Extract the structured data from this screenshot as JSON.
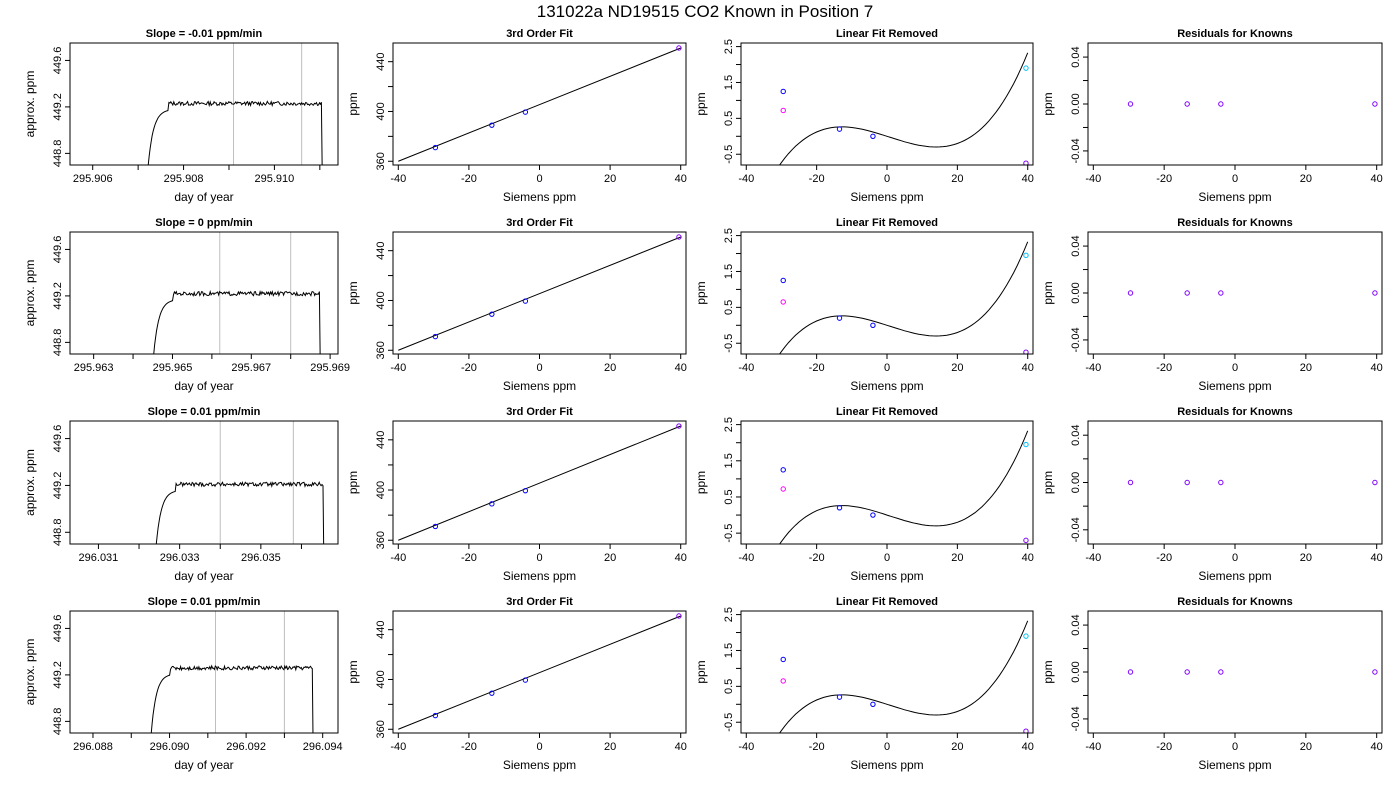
{
  "title": "131022a     ND19515   CO2 Known in Position  7",
  "colors": {
    "trace": "#000000",
    "vline": "#bebebe",
    "blue": "#0000ff",
    "magenta": "#ff00ff",
    "cyan": "#00bfff",
    "purple": "#8000ff"
  },
  "chart_data": [
    {
      "type": "line",
      "row": 0,
      "title": "Slope =  -0.01  ppm/min",
      "xlabel": "day of year",
      "ylabel": "approx. ppm",
      "xlim": [
        295.9055,
        295.9114
      ],
      "ylim": [
        448.7,
        449.75
      ],
      "xticks": [
        295.906,
        295.907,
        295.908,
        295.909,
        295.91,
        295.911
      ],
      "xtick_labels": [
        "295.906",
        "",
        "295.908",
        "",
        "295.910",
        ""
      ],
      "yticks": [
        448.8,
        449.2,
        449.6
      ],
      "ytick_labels": [
        "448.8",
        "449.2",
        "449.6"
      ],
      "vlines": [
        295.9091,
        295.9106
      ],
      "trace": {
        "start": 295.9072,
        "end": 295.9111,
        "level": 449.23
      }
    },
    {
      "type": "line",
      "row": 0,
      "title": "3rd Order Fit",
      "xlabel": "Siemens ppm",
      "ylabel": "ppm",
      "xlim": [
        -41.5,
        41.5
      ],
      "ylim": [
        357,
        455
      ],
      "xticks": [
        -40,
        -20,
        0,
        20,
        40
      ],
      "xtick_labels": [
        "-40",
        "-20",
        "0",
        "20",
        "40"
      ],
      "yticks": [
        360,
        380,
        400,
        420,
        440
      ],
      "ytick_labels": [
        "360",
        "",
        "400",
        "",
        "440"
      ],
      "line": {
        "x": [
          -40,
          40
        ],
        "y": [
          360,
          451
        ]
      },
      "points": [
        {
          "x": -29.5,
          "y": 371,
          "color": "blue"
        },
        {
          "x": -13.5,
          "y": 389,
          "color": "blue"
        },
        {
          "x": -4,
          "y": 399.5,
          "color": "blue"
        },
        {
          "x": 39.5,
          "y": 451,
          "color": "purple"
        }
      ]
    },
    {
      "type": "line",
      "row": 0,
      "title": "Linear Fit Removed",
      "xlabel": "Siemens ppm",
      "ylabel": "ppm",
      "xlim": [
        -41.5,
        41.5
      ],
      "ylim": [
        -0.8,
        2.6
      ],
      "xticks": [
        -40,
        -20,
        0,
        20,
        40
      ],
      "xtick_labels": [
        "-40",
        "-20",
        "0",
        "20",
        "40"
      ],
      "yticks": [
        -0.5,
        0,
        0.5,
        1,
        1.5,
        2,
        2.5
      ],
      "ytick_labels": [
        "-0.5",
        "",
        "0.5",
        "",
        "1.5",
        "",
        "2.5"
      ],
      "curve": {
        "type": "cubic",
        "a": 5.85e-05,
        "b": -0.0001,
        "c": -0.0314,
        "d": 0.0
      },
      "points": [
        {
          "x": -29.5,
          "y": 1.25,
          "color": "blue"
        },
        {
          "x": -29.5,
          "y": 0.72,
          "color": "magenta"
        },
        {
          "x": -13.5,
          "y": 0.2,
          "color": "blue"
        },
        {
          "x": -4,
          "y": 0.0,
          "color": "blue"
        },
        {
          "x": 39.5,
          "y": 1.9,
          "color": "cyan"
        },
        {
          "x": 39.5,
          "y": -0.75,
          "color": "purple"
        }
      ]
    },
    {
      "type": "scatter",
      "row": 0,
      "title": "Residuals for Knowns",
      "xlabel": "Siemens ppm",
      "ylabel": "ppm",
      "xlim": [
        -41.5,
        41.5
      ],
      "ylim": [
        -0.052,
        0.052
      ],
      "xticks": [
        -40,
        -20,
        0,
        20,
        40
      ],
      "xtick_labels": [
        "-40",
        "-20",
        "0",
        "20",
        "40"
      ],
      "yticks": [
        -0.04,
        -0.02,
        0,
        0.02,
        0.04
      ],
      "ytick_labels": [
        "-0.04",
        "",
        "0.00",
        "",
        "0.04"
      ],
      "points": [
        {
          "x": -29.5,
          "y": 0,
          "color": "purple"
        },
        {
          "x": -13.5,
          "y": 0,
          "color": "purple"
        },
        {
          "x": -4,
          "y": 0,
          "color": "purple"
        },
        {
          "x": 39.5,
          "y": 0,
          "color": "purple"
        }
      ]
    },
    {
      "type": "line",
      "row": 1,
      "title": "Slope =  0  ppm/min",
      "xlabel": "day of year",
      "ylabel": "approx. ppm",
      "xlim": [
        295.9624,
        295.9692
      ],
      "ylim": [
        448.7,
        449.75
      ],
      "xticks": [
        295.963,
        295.964,
        295.965,
        295.966,
        295.967,
        295.968,
        295.969
      ],
      "xtick_labels": [
        "295.963",
        "",
        "295.965",
        "",
        "295.967",
        "",
        "295.969"
      ],
      "yticks": [
        448.8,
        449.2,
        449.6
      ],
      "ytick_labels": [
        "448.8",
        "449.2",
        "449.6"
      ],
      "vlines": [
        295.9662,
        295.968
      ],
      "trace": {
        "start": 295.9645,
        "end": 295.9688,
        "level": 449.22
      }
    },
    {
      "type": "line",
      "row": 1,
      "title": "3rd Order Fit",
      "xlabel": "Siemens ppm",
      "ylabel": "ppm",
      "xlim": [
        -41.5,
        41.5
      ],
      "ylim": [
        357,
        455
      ],
      "xticks": [
        -40,
        -20,
        0,
        20,
        40
      ],
      "xtick_labels": [
        "-40",
        "-20",
        "0",
        "20",
        "40"
      ],
      "yticks": [
        360,
        380,
        400,
        420,
        440
      ],
      "ytick_labels": [
        "360",
        "",
        "400",
        "",
        "440"
      ],
      "line": {
        "x": [
          -40,
          40
        ],
        "y": [
          360,
          451
        ]
      },
      "points": [
        {
          "x": -29.5,
          "y": 371,
          "color": "blue"
        },
        {
          "x": -13.5,
          "y": 389,
          "color": "blue"
        },
        {
          "x": -4,
          "y": 399.5,
          "color": "blue"
        },
        {
          "x": 39.5,
          "y": 451,
          "color": "purple"
        }
      ]
    },
    {
      "type": "line",
      "row": 1,
      "title": "Linear Fit Removed",
      "xlabel": "Siemens ppm",
      "ylabel": "ppm",
      "xlim": [
        -41.5,
        41.5
      ],
      "ylim": [
        -0.8,
        2.6
      ],
      "xticks": [
        -40,
        -20,
        0,
        20,
        40
      ],
      "xtick_labels": [
        "-40",
        "-20",
        "0",
        "20",
        "40"
      ],
      "yticks": [
        -0.5,
        0,
        0.5,
        1,
        1.5,
        2,
        2.5
      ],
      "ytick_labels": [
        "-0.5",
        "",
        "0.5",
        "",
        "1.5",
        "",
        "2.5"
      ],
      "curve": {
        "type": "cubic",
        "a": 5.85e-05,
        "b": -0.0001,
        "c": -0.0314,
        "d": 0.0
      },
      "points": [
        {
          "x": -29.5,
          "y": 1.25,
          "color": "blue"
        },
        {
          "x": -29.5,
          "y": 0.65,
          "color": "magenta"
        },
        {
          "x": -13.5,
          "y": 0.2,
          "color": "blue"
        },
        {
          "x": -4,
          "y": 0.0,
          "color": "blue"
        },
        {
          "x": 39.5,
          "y": 1.95,
          "color": "cyan"
        },
        {
          "x": 39.5,
          "y": -0.75,
          "color": "purple"
        }
      ]
    },
    {
      "type": "scatter",
      "row": 1,
      "title": "Residuals for Knowns",
      "xlabel": "Siemens ppm",
      "ylabel": "ppm",
      "xlim": [
        -41.5,
        41.5
      ],
      "ylim": [
        -0.052,
        0.052
      ],
      "xticks": [
        -40,
        -20,
        0,
        20,
        40
      ],
      "xtick_labels": [
        "-40",
        "-20",
        "0",
        "20",
        "40"
      ],
      "yticks": [
        -0.04,
        -0.02,
        0,
        0.02,
        0.04
      ],
      "ytick_labels": [
        "-0.04",
        "",
        "0.00",
        "",
        "0.04"
      ],
      "points": [
        {
          "x": -29.5,
          "y": 0,
          "color": "purple"
        },
        {
          "x": -13.5,
          "y": 0,
          "color": "purple"
        },
        {
          "x": -4,
          "y": 0,
          "color": "purple"
        },
        {
          "x": 39.5,
          "y": 0,
          "color": "purple"
        }
      ]
    },
    {
      "type": "line",
      "row": 2,
      "title": "Slope =  0.01  ppm/min",
      "xlabel": "day of year",
      "ylabel": "approx. ppm",
      "xlim": [
        296.0303,
        296.0369
      ],
      "ylim": [
        448.7,
        449.75
      ],
      "xticks": [
        296.031,
        296.032,
        296.033,
        296.034,
        296.035,
        296.036
      ],
      "xtick_labels": [
        "296.031",
        "",
        "296.033",
        "",
        "296.035",
        ""
      ],
      "yticks": [
        448.8,
        449.2,
        449.6
      ],
      "ytick_labels": [
        "448.8",
        "449.2",
        "449.6"
      ],
      "vlines": [
        296.034,
        296.0358
      ],
      "trace": {
        "start": 296.0324,
        "end": 296.0366,
        "level": 449.21
      }
    },
    {
      "type": "line",
      "row": 2,
      "title": "3rd Order Fit",
      "xlabel": "Siemens ppm",
      "ylabel": "ppm",
      "xlim": [
        -41.5,
        41.5
      ],
      "ylim": [
        357,
        455
      ],
      "xticks": [
        -40,
        -20,
        0,
        20,
        40
      ],
      "xtick_labels": [
        "-40",
        "-20",
        "0",
        "20",
        "40"
      ],
      "yticks": [
        360,
        380,
        400,
        420,
        440
      ],
      "ytick_labels": [
        "360",
        "",
        "400",
        "",
        "440"
      ],
      "line": {
        "x": [
          -40,
          40
        ],
        "y": [
          360,
          451
        ]
      },
      "points": [
        {
          "x": -29.5,
          "y": 371,
          "color": "blue"
        },
        {
          "x": -13.5,
          "y": 389,
          "color": "blue"
        },
        {
          "x": -4,
          "y": 399.5,
          "color": "blue"
        },
        {
          "x": 39.5,
          "y": 451,
          "color": "purple"
        }
      ]
    },
    {
      "type": "line",
      "row": 2,
      "title": "Linear Fit Removed",
      "xlabel": "Siemens ppm",
      "ylabel": "ppm",
      "xlim": [
        -41.5,
        41.5
      ],
      "ylim": [
        -0.8,
        2.6
      ],
      "xticks": [
        -40,
        -20,
        0,
        20,
        40
      ],
      "xtick_labels": [
        "-40",
        "-20",
        "0",
        "20",
        "40"
      ],
      "yticks": [
        -0.5,
        0,
        0.5,
        1,
        1.5,
        2,
        2.5
      ],
      "ytick_labels": [
        "-0.5",
        "",
        "0.5",
        "",
        "1.5",
        "",
        "2.5"
      ],
      "curve": {
        "type": "cubic",
        "a": 5.85e-05,
        "b": -0.0001,
        "c": -0.0314,
        "d": 0.0
      },
      "points": [
        {
          "x": -29.5,
          "y": 1.25,
          "color": "blue"
        },
        {
          "x": -29.5,
          "y": 0.72,
          "color": "magenta"
        },
        {
          "x": -13.5,
          "y": 0.2,
          "color": "blue"
        },
        {
          "x": -4,
          "y": 0.0,
          "color": "blue"
        },
        {
          "x": 39.5,
          "y": 1.95,
          "color": "cyan"
        },
        {
          "x": 39.5,
          "y": -0.7,
          "color": "purple"
        }
      ]
    },
    {
      "type": "scatter",
      "row": 2,
      "title": "Residuals for Knowns",
      "xlabel": "Siemens ppm",
      "ylabel": "ppm",
      "xlim": [
        -41.5,
        41.5
      ],
      "ylim": [
        -0.052,
        0.052
      ],
      "xticks": [
        -40,
        -20,
        0,
        20,
        40
      ],
      "xtick_labels": [
        "-40",
        "-20",
        "0",
        "20",
        "40"
      ],
      "yticks": [
        -0.04,
        -0.02,
        0,
        0.02,
        0.04
      ],
      "ytick_labels": [
        "-0.04",
        "",
        "0.00",
        "",
        "0.04"
      ],
      "points": [
        {
          "x": -29.5,
          "y": 0,
          "color": "purple"
        },
        {
          "x": -13.5,
          "y": 0,
          "color": "purple"
        },
        {
          "x": -4,
          "y": 0,
          "color": "purple"
        },
        {
          "x": 39.5,
          "y": 0,
          "color": "purple"
        }
      ]
    },
    {
      "type": "line",
      "row": 3,
      "title": "Slope =  0.01  ppm/min",
      "xlabel": "day of year",
      "ylabel": "approx. ppm",
      "xlim": [
        296.0874,
        296.0944
      ],
      "ylim": [
        448.7,
        449.75
      ],
      "xticks": [
        296.088,
        296.089,
        296.09,
        296.091,
        296.092,
        296.093,
        296.094
      ],
      "xtick_labels": [
        "296.088",
        "",
        "296.090",
        "",
        "296.092",
        "",
        "296.094"
      ],
      "yticks": [
        448.8,
        449.2,
        449.6
      ],
      "ytick_labels": [
        "448.8",
        "449.2",
        "449.6"
      ],
      "vlines": [
        296.0912,
        296.093
      ],
      "trace": {
        "start": 296.0895,
        "end": 296.0938,
        "level": 449.26
      }
    },
    {
      "type": "line",
      "row": 3,
      "title": "3rd Order Fit",
      "xlabel": "Siemens ppm",
      "ylabel": "ppm",
      "xlim": [
        -41.5,
        41.5
      ],
      "ylim": [
        357,
        455
      ],
      "xticks": [
        -40,
        -20,
        0,
        20,
        40
      ],
      "xtick_labels": [
        "-40",
        "-20",
        "0",
        "20",
        "40"
      ],
      "yticks": [
        360,
        380,
        400,
        420,
        440
      ],
      "ytick_labels": [
        "360",
        "",
        "400",
        "",
        "440"
      ],
      "line": {
        "x": [
          -40,
          40
        ],
        "y": [
          360,
          451
        ]
      },
      "points": [
        {
          "x": -29.5,
          "y": 371,
          "color": "blue"
        },
        {
          "x": -13.5,
          "y": 389,
          "color": "blue"
        },
        {
          "x": -4,
          "y": 399.5,
          "color": "blue"
        },
        {
          "x": 39.5,
          "y": 451,
          "color": "purple"
        }
      ]
    },
    {
      "type": "line",
      "row": 3,
      "title": "Linear Fit Removed",
      "xlabel": "Siemens ppm",
      "ylabel": "ppm",
      "xlim": [
        -41.5,
        41.5
      ],
      "ylim": [
        -0.8,
        2.6
      ],
      "xticks": [
        -40,
        -20,
        0,
        20,
        40
      ],
      "xtick_labels": [
        "-40",
        "-20",
        "0",
        "20",
        "40"
      ],
      "yticks": [
        -0.5,
        0,
        0.5,
        1,
        1.5,
        2,
        2.5
      ],
      "ytick_labels": [
        "-0.5",
        "",
        "0.5",
        "",
        "1.5",
        "",
        "2.5"
      ],
      "curve": {
        "type": "cubic",
        "a": 5.85e-05,
        "b": -0.0001,
        "c": -0.0314,
        "d": 0.0
      },
      "points": [
        {
          "x": -29.5,
          "y": 1.25,
          "color": "blue"
        },
        {
          "x": -29.5,
          "y": 0.65,
          "color": "magenta"
        },
        {
          "x": -13.5,
          "y": 0.2,
          "color": "blue"
        },
        {
          "x": -4,
          "y": 0.0,
          "color": "blue"
        },
        {
          "x": 39.5,
          "y": 1.9,
          "color": "cyan"
        },
        {
          "x": 39.5,
          "y": -0.75,
          "color": "purple"
        }
      ]
    },
    {
      "type": "scatter",
      "row": 3,
      "title": "Residuals for Knowns",
      "xlabel": "Siemens ppm",
      "ylabel": "ppm",
      "xlim": [
        -41.5,
        41.5
      ],
      "ylim": [
        -0.052,
        0.052
      ],
      "xticks": [
        -40,
        -20,
        0,
        20,
        40
      ],
      "xtick_labels": [
        "-40",
        "-20",
        "0",
        "20",
        "40"
      ],
      "yticks": [
        -0.04,
        -0.02,
        0,
        0.02,
        0.04
      ],
      "ytick_labels": [
        "-0.04",
        "",
        "0.00",
        "",
        "0.04"
      ],
      "points": [
        {
          "x": -29.5,
          "y": 0,
          "color": "purple"
        },
        {
          "x": -13.5,
          "y": 0,
          "color": "purple"
        },
        {
          "x": -4,
          "y": 0,
          "color": "purple"
        },
        {
          "x": 39.5,
          "y": 0,
          "color": "purple"
        }
      ]
    }
  ]
}
